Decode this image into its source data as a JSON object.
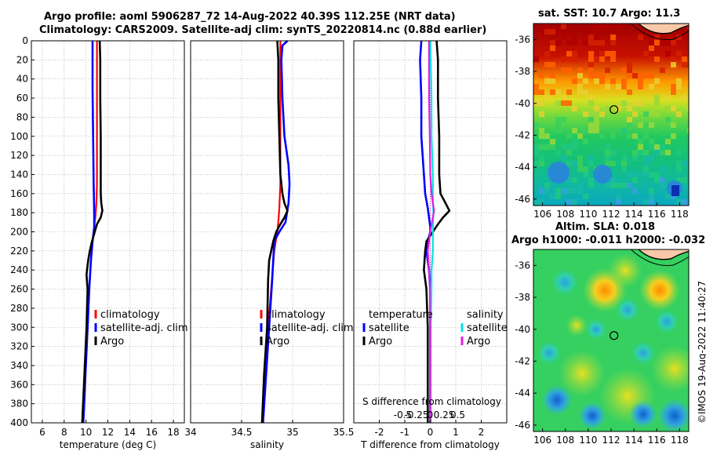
{
  "title": {
    "line1": "Argo profile: aoml 5906287_72 14-Aug-2022 40.39S 112.25E (NRT data)",
    "line2": "Climatology: CARS2009. Satellite-adj clim: synTS_20220814.nc (0.88d earlier)"
  },
  "map_titles": {
    "sst": "sat. SST: 10.7 Argo: 11.3",
    "sla1": "Altim. SLA: 0.018",
    "sla2": "Argo h1000: -0.011 h2000: -0.032"
  },
  "side_label": "©IMOS 19-Aug-2022 11:40:27",
  "colors": {
    "climatology": "#ff0000",
    "satellite": "#0000ff",
    "argo": "#000000",
    "salinity_satellite": "#00e5e5",
    "salinity_argo": "#e020e0",
    "grid": "#9a9a9a"
  },
  "chart_data": [
    {
      "type": "line",
      "name": "temperature-profile",
      "xlabel": "temperature (deg C)",
      "ylabel": "",
      "xlim": [
        5,
        19
      ],
      "ylim": [
        400,
        0
      ],
      "xticks": [
        6,
        8,
        10,
        12,
        14,
        16,
        18
      ],
      "yticks": [
        0,
        20,
        40,
        60,
        80,
        100,
        120,
        140,
        160,
        180,
        200,
        220,
        240,
        260,
        280,
        300,
        320,
        340,
        360,
        380,
        400
      ],
      "legend": [
        "climatology",
        "satellite-adj. clim",
        "Argo"
      ],
      "legend_position": "lower-right",
      "series": [
        {
          "name": "climatology",
          "color": "#ff0000",
          "depth": [
            0,
            50,
            100,
            150,
            170,
            185,
            195,
            200,
            210,
            230,
            260,
            300,
            350,
            400
          ],
          "values": [
            11.0,
            11.0,
            11.0,
            11.0,
            10.95,
            10.85,
            10.75,
            10.7,
            10.6,
            10.45,
            10.3,
            10.15,
            9.95,
            9.75
          ]
        },
        {
          "name": "satellite-adj. clim",
          "color": "#0000ff",
          "depth": [
            0,
            50,
            100,
            150,
            180,
            195,
            200,
            210,
            230,
            260,
            300,
            350,
            400
          ],
          "values": [
            10.6,
            10.6,
            10.65,
            10.7,
            10.75,
            10.75,
            10.7,
            10.6,
            10.45,
            10.3,
            10.15,
            9.95,
            9.75
          ]
        },
        {
          "name": "Argo",
          "color": "#000000",
          "depth": [
            0,
            20,
            60,
            100,
            140,
            160,
            170,
            178,
            185,
            192,
            200,
            210,
            220,
            230,
            245,
            260,
            300,
            350,
            400
          ],
          "values": [
            11.25,
            11.3,
            11.3,
            11.35,
            11.35,
            11.35,
            11.4,
            11.5,
            11.35,
            11.0,
            10.8,
            10.55,
            10.35,
            10.2,
            10.05,
            10.15,
            10.05,
            9.85,
            9.65
          ]
        }
      ]
    },
    {
      "type": "line",
      "name": "salinity-profile",
      "xlabel": "salinity",
      "ylabel": "",
      "xlim": [
        34,
        35.5
      ],
      "ylim": [
        400,
        0
      ],
      "xticks": [
        34,
        34.5,
        35,
        35.5
      ],
      "xticklabels": [
        "34",
        "34.5",
        "35",
        "35.5"
      ],
      "legend": [
        "climatology",
        "satellite-adj. clim",
        "Argo"
      ],
      "legend_position": "lower-right",
      "series": [
        {
          "name": "climatology",
          "color": "#ff0000",
          "depth": [
            0,
            100,
            150,
            175,
            190,
            200,
            220,
            260,
            300,
            350,
            400
          ],
          "values": [
            34.88,
            34.88,
            34.88,
            34.87,
            34.86,
            34.85,
            34.82,
            34.79,
            34.76,
            34.73,
            34.71
          ]
        },
        {
          "name": "satellite-adj. clim",
          "color": "#0000ff",
          "depth": [
            0,
            5,
            20,
            60,
            100,
            130,
            150,
            170,
            190,
            200,
            210,
            230,
            250,
            300,
            350,
            400
          ],
          "values": [
            34.95,
            34.9,
            34.89,
            34.9,
            34.92,
            34.96,
            34.97,
            34.96,
            34.93,
            34.87,
            34.82,
            34.81,
            34.8,
            34.77,
            34.74,
            34.71
          ]
        },
        {
          "name": "Argo",
          "color": "#000000",
          "depth": [
            0,
            20,
            60,
            100,
            140,
            160,
            170,
            178,
            185,
            192,
            200,
            210,
            220,
            230,
            250,
            300,
            350,
            400
          ],
          "values": [
            34.85,
            34.86,
            34.86,
            34.87,
            34.88,
            34.9,
            34.92,
            34.95,
            34.92,
            34.88,
            34.84,
            34.81,
            34.79,
            34.77,
            34.76,
            34.75,
            34.72,
            34.7
          ]
        }
      ]
    },
    {
      "type": "line",
      "name": "difference-profile",
      "xlabel": "T difference from climatology",
      "top_label": "S difference from climatology",
      "xlim": [
        -3,
        3
      ],
      "ylim": [
        400,
        0
      ],
      "xticks": [
        -2,
        -1,
        0,
        1,
        2
      ],
      "top_ticks": [
        -0.5,
        -0.25,
        0,
        0.25,
        0.5
      ],
      "top_ticklabels": [
        "-0.5",
        "-0.25",
        "0",
        "0.25",
        "0.5"
      ],
      "legend": {
        "temperature_header": "temperature",
        "salinity_header": "salinity",
        "temperature": [
          "satellite",
          "Argo"
        ],
        "salinity": [
          "satellite",
          "Argo"
        ]
      },
      "legend_position": "lower-center",
      "series": [
        {
          "name": "temperature satellite",
          "color": "#0000ff",
          "depth": [
            0,
            20,
            60,
            100,
            140,
            160,
            175,
            185,
            195,
            200,
            210,
            220,
            240,
            260,
            300,
            350,
            400
          ],
          "values": [
            -0.35,
            -0.4,
            -0.35,
            -0.35,
            -0.25,
            -0.2,
            -0.1,
            -0.05,
            0.0,
            0.0,
            -0.1,
            -0.15,
            -0.05,
            0.0,
            0.0,
            0.0,
            0.0
          ]
        },
        {
          "name": "temperature Argo",
          "color": "#000000",
          "depth": [
            0,
            20,
            60,
            100,
            140,
            160,
            170,
            178,
            185,
            192,
            200,
            210,
            220,
            240,
            260,
            300,
            350,
            400
          ],
          "values": [
            0.25,
            0.3,
            0.3,
            0.35,
            0.35,
            0.4,
            0.6,
            0.75,
            0.5,
            0.3,
            0.1,
            -0.15,
            -0.2,
            -0.25,
            -0.15,
            -0.1,
            -0.1,
            -0.1
          ]
        },
        {
          "name": "salinity satellite",
          "color": "#00e5e5",
          "depth": [
            0,
            60,
            100,
            140,
            160,
            180,
            200,
            220,
            240,
            260,
            300,
            350,
            400
          ],
          "values": [
            0.0,
            0.05,
            0.05,
            0.1,
            0.1,
            0.12,
            0.1,
            0.1,
            0.05,
            0.05,
            0.02,
            0.02,
            0.02
          ]
        },
        {
          "name": "salinity Argo",
          "color": "#e020e0",
          "depth": [
            0,
            60,
            100,
            140,
            160,
            170,
            178,
            185,
            192,
            200,
            210,
            220,
            240,
            260,
            300,
            350,
            400
          ],
          "values": [
            -0.05,
            -0.05,
            -0.02,
            0.0,
            0.05,
            0.1,
            0.15,
            0.1,
            0.05,
            0.0,
            -0.05,
            -0.1,
            -0.05,
            -0.02,
            0.0,
            0.0,
            0.0
          ]
        }
      ]
    },
    {
      "type": "heatmap",
      "name": "sst-map",
      "title": "sat. SST: 10.7 Argo: 11.3",
      "xticks": [
        106,
        108,
        110,
        112,
        114,
        116,
        118
      ],
      "yticks": [
        -36,
        -38,
        -40,
        -42,
        -44,
        -46
      ],
      "xlim": [
        105.2,
        118.8
      ],
      "ylim": [
        -46.4,
        -35.0
      ],
      "float_position": [
        112.25,
        -40.39
      ]
    },
    {
      "type": "heatmap",
      "name": "sla-map",
      "title": "Altim. SLA: 0.018",
      "xticks": [
        106,
        108,
        110,
        112,
        114,
        116,
        118
      ],
      "yticks": [
        -36,
        -38,
        -40,
        -42,
        -44,
        -46
      ],
      "xlim": [
        105.2,
        118.8
      ],
      "ylim": [
        -46.4,
        -35.0
      ],
      "float_position": [
        112.25,
        -40.39
      ]
    }
  ]
}
